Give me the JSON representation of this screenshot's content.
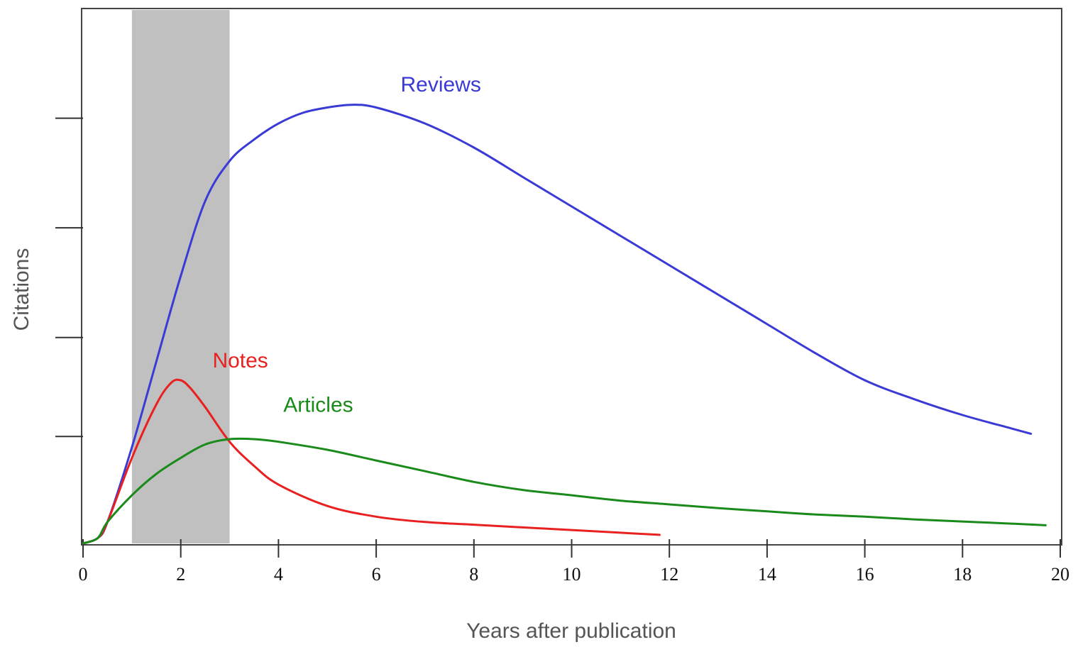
{
  "chart_data": {
    "type": "line",
    "title": "",
    "xlabel": "Years after publication",
    "ylabel": "Citations",
    "xlim": [
      0,
      20
    ],
    "ylim": [
      0,
      100
    ],
    "x_ticks": [
      0,
      2,
      4,
      6,
      8,
      10,
      12,
      14,
      16,
      18,
      20
    ],
    "y_ticks": [
      20,
      38.5,
      59,
      79.5
    ],
    "y_tick_labels_shown": false,
    "grid": false,
    "legend": "none (series labeled inline)",
    "highlight_band": {
      "x_start": 1,
      "x_end": 3,
      "color": "#c0c0c0"
    },
    "series": [
      {
        "name": "Reviews",
        "color": "#3a3ad6",
        "label_at": [
          6.5,
          84.5
        ],
        "x": [
          0,
          0.3,
          0.5,
          1,
          1.5,
          2,
          2.5,
          3,
          3.5,
          4,
          4.5,
          5,
          5.5,
          6,
          7,
          8,
          9,
          10,
          11,
          12,
          13,
          14,
          15,
          16,
          17,
          18,
          19,
          19.4
        ],
        "y": [
          0,
          1,
          4,
          18,
          34,
          50,
          64,
          71.5,
          75.5,
          78.5,
          80.5,
          81.5,
          82,
          81.5,
          78.5,
          74,
          68.5,
          63,
          57.5,
          52,
          46.5,
          41,
          35.5,
          30.5,
          27,
          24,
          21.5,
          20.5
        ]
      },
      {
        "name": "Notes",
        "color": "#e82020",
        "label_at": [
          2.65,
          32.9
        ],
        "x": [
          0,
          0.3,
          0.5,
          1,
          1.5,
          1.8,
          2,
          2.2,
          2.5,
          3,
          3.5,
          4,
          5,
          6,
          7,
          8,
          9,
          10,
          11,
          11.8
        ],
        "y": [
          0,
          1,
          4,
          16,
          26,
          30,
          30.5,
          29,
          25.5,
          19,
          14.5,
          11,
          7,
          5,
          4,
          3.5,
          3,
          2.5,
          2,
          1.6
        ]
      },
      {
        "name": "Articles",
        "color": "#1a8a1a",
        "label_at": [
          4.1,
          24.6
        ],
        "x": [
          0,
          0.3,
          0.5,
          1,
          1.5,
          2,
          2.5,
          3,
          3.5,
          4,
          5,
          6,
          7,
          8,
          9,
          10,
          11,
          12,
          13,
          14,
          15,
          16,
          17,
          18,
          19,
          19.7
        ],
        "y": [
          0,
          1,
          4,
          9,
          13,
          16,
          18.5,
          19.5,
          19.5,
          19,
          17.5,
          15.5,
          13.5,
          11.5,
          10,
          9,
          8,
          7.3,
          6.6,
          6,
          5.4,
          5,
          4.5,
          4.1,
          3.7,
          3.4
        ]
      }
    ]
  }
}
